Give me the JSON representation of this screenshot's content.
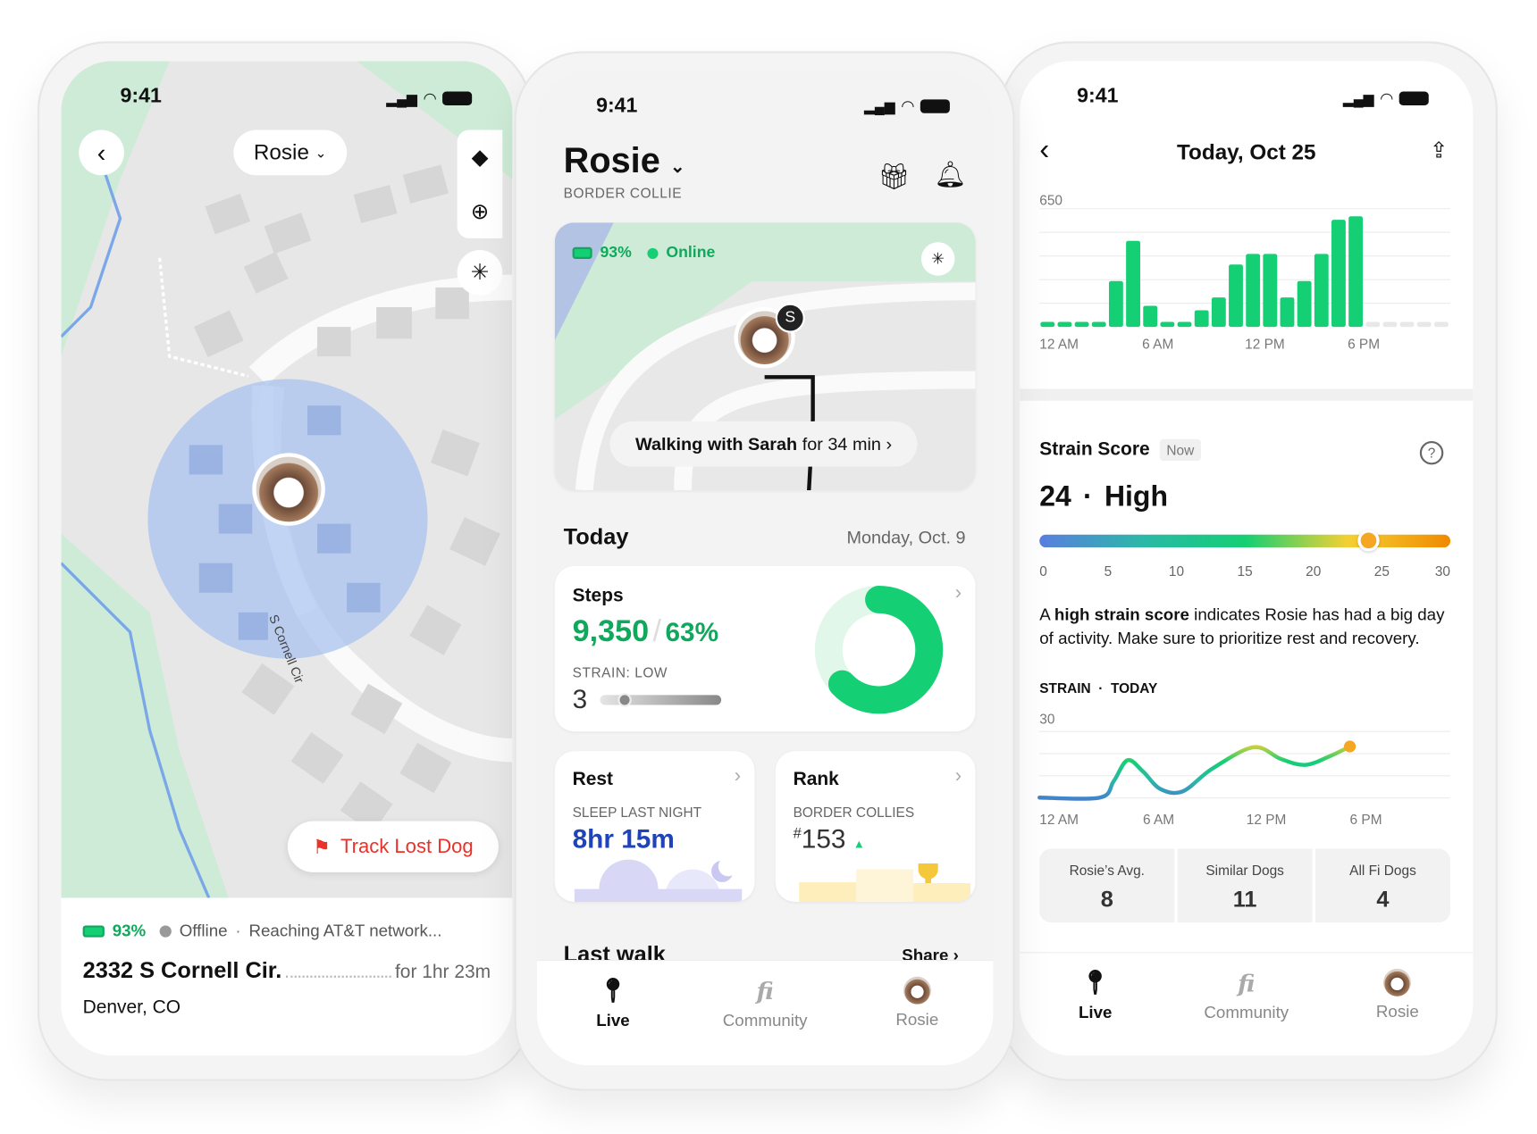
{
  "status_time": "9:41",
  "left": {
    "dog_selector": "Rosie",
    "street_label": "S Cornell Cir",
    "track_lost_dog": "Track Lost Dog",
    "battery": "93%",
    "connection": "Offline",
    "connection_detail": "Reaching AT&T network...",
    "address": "2332 S Cornell Cir.",
    "duration": "for 1hr 23m",
    "city": "Denver, CO"
  },
  "middle": {
    "dog_name": "Rosie",
    "breed": "BORDER COLLIE",
    "battery": "93%",
    "online": "Online",
    "walker_badge": "S",
    "walk_status": "Walking with Sarah",
    "walk_duration": "for 34 min ›",
    "today_heading": "Today",
    "today_date": "Monday, Oct. 9",
    "steps": {
      "title": "Steps",
      "count": "9,350",
      "separator": "/",
      "percent": "63%",
      "progress": 63,
      "strain_label": "STRAIN: LOW",
      "strain_value": "3",
      "strain_fraction": 0.2
    },
    "rest": {
      "title": "Rest",
      "label": "SLEEP LAST NIGHT",
      "value": "8hr 15m"
    },
    "rank": {
      "title": "Rank",
      "label": "BORDER COLLIES",
      "hash": "#",
      "value": "153",
      "trend": "up"
    },
    "last_walk": "Last walk",
    "share": "Share"
  },
  "right": {
    "title": "Today, Oct 25",
    "strain_title": "Strain Score",
    "now_badge": "Now",
    "score": "24",
    "dot": "·",
    "level": "High",
    "scale_ticks": [
      "0",
      "5",
      "10",
      "15",
      "20",
      "25",
      "30"
    ],
    "scale_value": 24,
    "desc_prefix": "A ",
    "desc_bold": "high strain score",
    "desc_rest": " indicates Rosie has had a big day of activity. Make sure to prioritize rest and recovery.",
    "strain_today": "STRAIN  ·  TODAY",
    "stats": [
      {
        "label": "Rosie’s Avg.",
        "value": "8"
      },
      {
        "label": "Similar Dogs",
        "value": "11"
      },
      {
        "label": "All Fi Dogs",
        "value": "4"
      }
    ]
  },
  "tabs": [
    {
      "label": "Live",
      "icon": "pin-icon"
    },
    {
      "label": "Community",
      "icon": "fi-logo-icon"
    },
    {
      "label": "Rosie",
      "icon": "dog-avatar-icon"
    }
  ],
  "chart_data": [
    {
      "type": "bar",
      "title": "",
      "ylim": [
        0,
        650
      ],
      "ytick_label": "650",
      "x_tick_labels": [
        "12 AM",
        "6 AM",
        "12 PM",
        "6 PM"
      ],
      "categories": [
        "0",
        "1",
        "2",
        "3",
        "4",
        "5",
        "6",
        "7",
        "8",
        "9",
        "10",
        "11",
        "12",
        "13",
        "14",
        "15",
        "16",
        "17",
        "18",
        "19",
        "20",
        "21",
        "22",
        "23"
      ],
      "values": [
        25,
        25,
        25,
        25,
        252,
        473,
        116,
        25,
        25,
        91,
        162,
        343,
        401,
        401,
        162,
        252,
        401,
        589,
        608,
        null,
        null,
        null,
        null,
        null
      ],
      "colors": {
        "bar": "#14cf74",
        "future": "#e8e8e8"
      }
    },
    {
      "type": "line",
      "title": "",
      "ylim": [
        0,
        30
      ],
      "ytick_label": "30",
      "x_tick_labels": [
        "12 AM",
        "6 AM",
        "12 PM",
        "6 PM"
      ],
      "x": [
        0,
        3.5,
        4.3,
        5.1,
        6,
        7,
        8.3,
        10,
        12.4,
        14,
        15.4,
        16.8,
        18
      ],
      "y": [
        3.5,
        3.5,
        10,
        18.5,
        14,
        7,
        6,
        15,
        23.7,
        19,
        16.6,
        20,
        24
      ]
    }
  ],
  "colors": {
    "accent_green": "#14cf74",
    "text_green": "#10a85c",
    "sleep_blue": "#1f43b8",
    "track_red": "#e8322a",
    "knob": "#f5a623"
  }
}
